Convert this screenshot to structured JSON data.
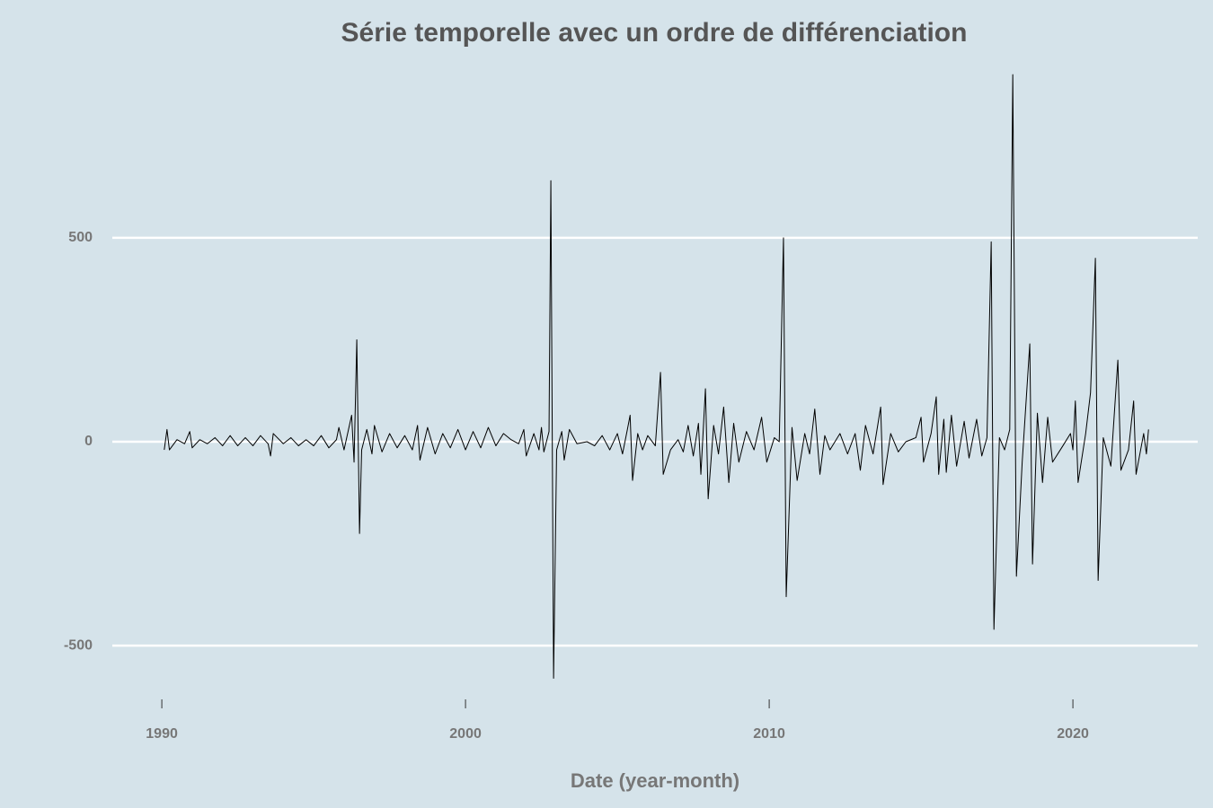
{
  "chart_data": {
    "type": "line",
    "title": "Série temporelle avec un ordre de différenciation",
    "x_label": "Date (year-month)",
    "xlim": [
      1988.37,
      2024.11
    ],
    "ylim": [
      -656,
      951
    ],
    "xticks": [
      1990,
      2000,
      2010,
      2020
    ],
    "yticks": [
      -500,
      0,
      500
    ],
    "grid": true,
    "color": "#000000",
    "x": [
      1990.08,
      1990.17,
      1990.25,
      1990.5,
      1990.75,
      1990.92,
      1991.0,
      1991.25,
      1991.5,
      1991.75,
      1992.0,
      1992.25,
      1992.5,
      1992.75,
      1993.0,
      1993.25,
      1993.5,
      1993.58,
      1993.67,
      1994.0,
      1994.25,
      1994.5,
      1994.75,
      1995.0,
      1995.25,
      1995.5,
      1995.75,
      1995.83,
      1996.0,
      1996.25,
      1996.33,
      1996.42,
      1996.51,
      1996.58,
      1996.75,
      1996.92,
      1997.0,
      1997.25,
      1997.5,
      1997.75,
      1998.0,
      1998.25,
      1998.42,
      1998.5,
      1998.75,
      1999.0,
      1999.25,
      1999.5,
      1999.75,
      2000.0,
      2000.25,
      2000.5,
      2000.75,
      2001.0,
      2001.25,
      2001.5,
      2001.75,
      2001.92,
      2002.0,
      2002.25,
      2002.42,
      2002.5,
      2002.58,
      2002.75,
      2002.81,
      2002.9,
      2003.0,
      2003.17,
      2003.25,
      2003.42,
      2003.67,
      2004.0,
      2004.25,
      2004.5,
      2004.75,
      2005.0,
      2005.17,
      2005.33,
      2005.42,
      2005.5,
      2005.67,
      2005.83,
      2006.0,
      2006.25,
      2006.42,
      2006.51,
      2006.75,
      2007.0,
      2007.17,
      2007.33,
      2007.5,
      2007.67,
      2007.75,
      2007.9,
      2007.99,
      2008.17,
      2008.33,
      2008.5,
      2008.67,
      2008.83,
      2009.0,
      2009.25,
      2009.5,
      2009.75,
      2009.92,
      2010.17,
      2010.33,
      2010.47,
      2010.56,
      2010.75,
      2010.92,
      2011.17,
      2011.33,
      2011.5,
      2011.67,
      2011.83,
      2012.0,
      2012.33,
      2012.58,
      2012.83,
      2013.0,
      2013.17,
      2013.42,
      2013.67,
      2013.75,
      2014.0,
      2014.25,
      2014.5,
      2014.83,
      2015.0,
      2015.08,
      2015.33,
      2015.5,
      2015.58,
      2015.75,
      2015.83,
      2016.0,
      2016.17,
      2016.42,
      2016.58,
      2016.83,
      2017.0,
      2017.17,
      2017.31,
      2017.4,
      2017.58,
      2017.75,
      2017.92,
      2018.02,
      2018.14,
      2018.33,
      2018.58,
      2018.67,
      2018.83,
      2019.0,
      2019.17,
      2019.33,
      2019.67,
      2019.92,
      2020.0,
      2020.08,
      2020.17,
      2020.42,
      2020.58,
      2020.74,
      2020.83,
      2021.0,
      2021.25,
      2021.48,
      2021.58,
      2021.83,
      2022.0,
      2022.08,
      2022.33,
      2022.42,
      2022.49
    ],
    "values": [
      -20,
      30,
      -20,
      5,
      -5,
      25,
      -15,
      5,
      -5,
      10,
      -10,
      15,
      -10,
      10,
      -10,
      15,
      -5,
      -35,
      20,
      -5,
      10,
      -10,
      5,
      -10,
      15,
      -15,
      5,
      35,
      -20,
      65,
      -50,
      250,
      -225,
      -20,
      30,
      -30,
      40,
      -25,
      20,
      -15,
      15,
      -20,
      40,
      -45,
      35,
      -30,
      20,
      -15,
      30,
      -20,
      25,
      -15,
      35,
      -10,
      20,
      5,
      -5,
      30,
      -35,
      20,
      -20,
      35,
      -25,
      25,
      640,
      -580,
      -20,
      25,
      -45,
      30,
      -5,
      0,
      -10,
      15,
      -20,
      20,
      -30,
      30,
      65,
      -95,
      20,
      -20,
      15,
      -10,
      170,
      -80,
      -20,
      5,
      -25,
      40,
      -35,
      45,
      -80,
      130,
      -140,
      40,
      -30,
      85,
      -100,
      45,
      -50,
      25,
      -20,
      60,
      -50,
      10,
      0,
      500,
      -380,
      35,
      -95,
      20,
      -30,
      80,
      -80,
      15,
      -20,
      20,
      -30,
      20,
      -70,
      40,
      -30,
      85,
      -105,
      20,
      -25,
      0,
      10,
      60,
      -50,
      20,
      110,
      -80,
      55,
      -75,
      65,
      -60,
      50,
      -40,
      55,
      -35,
      10,
      490,
      -460,
      10,
      -20,
      30,
      900,
      -330,
      -50,
      240,
      -300,
      70,
      -100,
      60,
      -50,
      -10,
      20,
      -20,
      100,
      -100,
      20,
      120,
      450,
      -340,
      10,
      -60,
      200,
      -70,
      -20,
      100,
      -80,
      20,
      -30,
      30
    ]
  }
}
